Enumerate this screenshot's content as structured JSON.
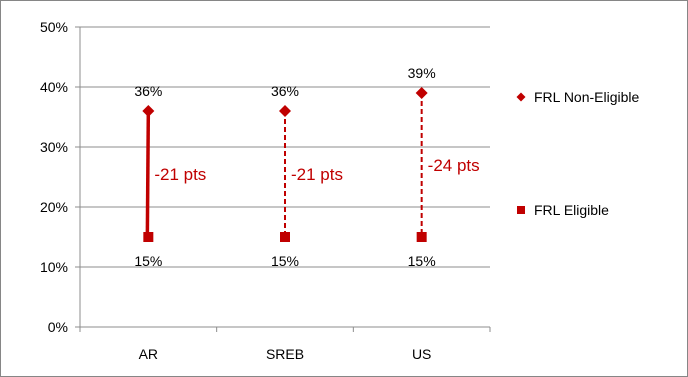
{
  "chart_data": {
    "type": "dot-range",
    "categories": [
      "AR",
      "SREB",
      "US"
    ],
    "y_ticks": [
      "0%",
      "10%",
      "20%",
      "30%",
      "40%",
      "50%"
    ],
    "ylim": [
      0,
      50
    ],
    "grid": true,
    "legend_position": "right",
    "colors": {
      "series": "#C00000",
      "diff": "#C00000",
      "grid": "#8C8C8C",
      "axis": "#8C8C8C"
    },
    "series": [
      {
        "name": "FRL Non-Eligible",
        "marker": "diamond",
        "values": [
          36,
          36,
          39
        ],
        "labels": [
          "36%",
          "36%",
          "39%"
        ]
      },
      {
        "name": "FRL Eligible",
        "marker": "square",
        "values": [
          15,
          15,
          15
        ],
        "labels": [
          "15%",
          "15%",
          "15%"
        ]
      }
    ],
    "gaps": [
      {
        "category": "AR",
        "label": "-21 pts",
        "line_style": "solid"
      },
      {
        "category": "SREB",
        "label": "-21 pts",
        "line_style": "dashed"
      },
      {
        "category": "US",
        "label": "-24 pts",
        "line_style": "dashed"
      }
    ]
  }
}
